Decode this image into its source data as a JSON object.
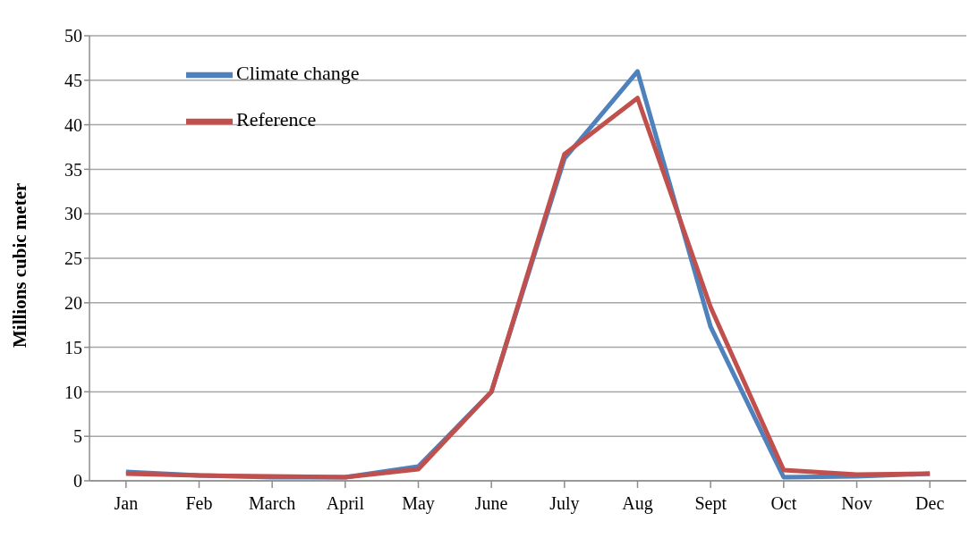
{
  "chart_data": {
    "type": "line",
    "ylabel": "Millions cubic meter",
    "categories": [
      "Jan",
      "Feb",
      "March",
      "April",
      "May",
      "June",
      "July",
      "Aug",
      "Sept",
      "Oct",
      "Nov",
      "Dec"
    ],
    "series": [
      {
        "name": "Climate change",
        "color": "#4f81bd",
        "values": [
          1.0,
          0.6,
          0.4,
          0.4,
          1.6,
          10,
          36.2,
          46,
          17.3,
          0.4,
          0.5,
          0.8
        ]
      },
      {
        "name": "Reference",
        "color": "#c0504d",
        "values": [
          0.8,
          0.6,
          0.5,
          0.4,
          1.3,
          10,
          36.7,
          43,
          19.5,
          1.2,
          0.7,
          0.8
        ]
      }
    ],
    "ylim": [
      0,
      50
    ],
    "yticks": [
      0,
      5,
      10,
      15,
      20,
      25,
      30,
      35,
      40,
      45,
      50
    ],
    "grid": "y",
    "legend": "top left",
    "marker": "none",
    "line_style": "solid"
  }
}
